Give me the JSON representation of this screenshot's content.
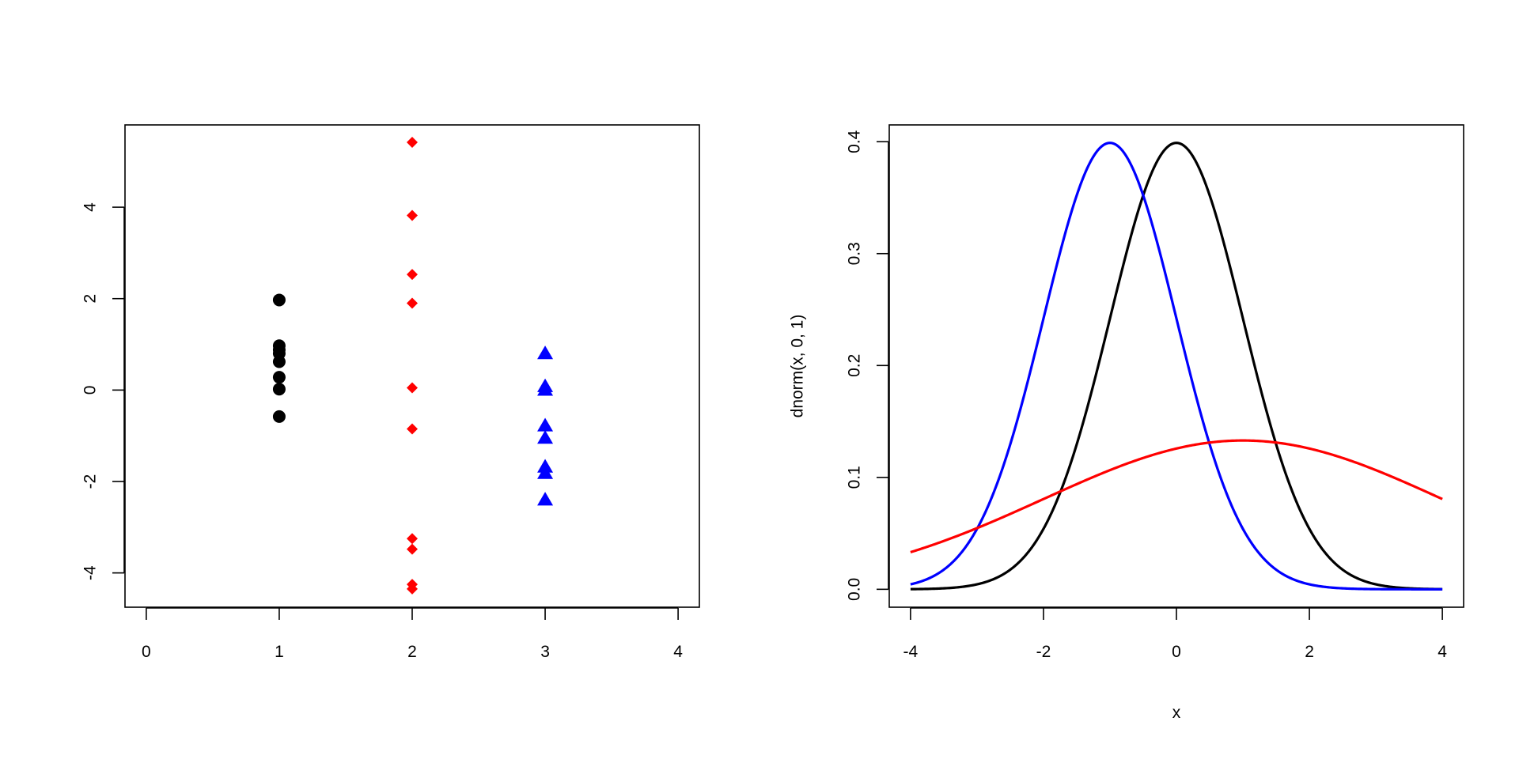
{
  "chart_data": [
    {
      "type": "scatter",
      "xlabel": "",
      "ylabel": "",
      "xlim": [
        -0.16,
        4.16
      ],
      "ylim": [
        -4.75,
        5.8
      ],
      "x_ticks": [
        0,
        1,
        2,
        3,
        4
      ],
      "y_ticks": [
        -4,
        -2,
        0,
        2,
        4
      ],
      "grid": false,
      "series": [
        {
          "marker": "circle",
          "color": "#000000",
          "points": [
            [
              1,
              1.97
            ],
            [
              1,
              0.97
            ],
            [
              1,
              0.88
            ],
            [
              1,
              0.8
            ],
            [
              1,
              0.62
            ],
            [
              1,
              0.28
            ],
            [
              1,
              0.02
            ],
            [
              1,
              -0.58
            ]
          ]
        },
        {
          "marker": "diamond",
          "color": "#ff0000",
          "points": [
            [
              2,
              5.42
            ],
            [
              2,
              3.82
            ],
            [
              2,
              2.53
            ],
            [
              2,
              1.9
            ],
            [
              2,
              0.05
            ],
            [
              2,
              -0.85
            ],
            [
              2,
              -3.25
            ],
            [
              2,
              -3.48
            ],
            [
              2,
              -4.25
            ],
            [
              2,
              -4.35
            ]
          ]
        },
        {
          "marker": "triangle",
          "color": "#0000ff",
          "points": [
            [
              3,
              0.8
            ],
            [
              3,
              0.08
            ],
            [
              3,
              0.0
            ],
            [
              3,
              -0.78
            ],
            [
              3,
              -1.05
            ],
            [
              3,
              -1.68
            ],
            [
              3,
              -1.82
            ],
            [
              3,
              -2.4
            ]
          ]
        }
      ]
    },
    {
      "type": "line",
      "xlabel": "x",
      "ylabel": "dnorm(x, 0, 1)",
      "xlim": [
        -4.32,
        4.32
      ],
      "ylim": [
        -0.016,
        0.415
      ],
      "x_ticks": [
        -4,
        -2,
        0,
        2,
        4
      ],
      "y_ticks": [
        0.0,
        0.1,
        0.2,
        0.3,
        0.4
      ],
      "y_tick_labels": [
        "0.0",
        "0.1",
        "0.2",
        "0.3",
        "0.4"
      ],
      "grid": false,
      "series": [
        {
          "curve": "dnorm",
          "mean": 0,
          "sd": 1,
          "color": "#000000",
          "x_range": [
            -4,
            4
          ]
        },
        {
          "curve": "dnorm",
          "mean": -1,
          "sd": 1,
          "color": "#0000ff",
          "x_range": [
            -4,
            4
          ]
        },
        {
          "curve": "dnorm",
          "mean": 1,
          "sd": 3,
          "color": "#ff0000",
          "x_range": [
            -4,
            4
          ]
        }
      ]
    }
  ]
}
